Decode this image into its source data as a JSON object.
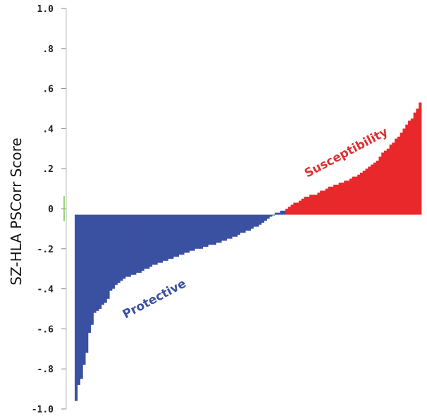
{
  "chart_data": {
    "type": "bar",
    "ylabel": "SZ-HLA PSCorr Score",
    "xlabel": "",
    "ylim": [
      -1.0,
      1.0
    ],
    "yticks": [
      {
        "value": 1.0,
        "label": "1.0"
      },
      {
        "value": 0.8,
        "label": ".8"
      },
      {
        "value": 0.6,
        "label": ".6"
      },
      {
        "value": 0.4,
        "label": ".4"
      },
      {
        "value": 0.2,
        "label": ".2"
      },
      {
        "value": 0.0,
        "label": "0"
      },
      {
        "value": -0.2,
        "label": "-.2"
      },
      {
        "value": -0.4,
        "label": "-.4"
      },
      {
        "value": -0.6,
        "label": "-.6"
      },
      {
        "value": -0.8,
        "label": "-.8"
      },
      {
        "value": -1.0,
        "label": "-1.0"
      }
    ],
    "grid": false,
    "annotations": [
      {
        "text": "Protective",
        "color": "#3a50a0"
      },
      {
        "text": "Susceptibility",
        "color": "#e03030"
      }
    ],
    "protective_color": "#3a50a0",
    "susceptibility_color": "#e8282a",
    "values": [
      -0.96,
      -0.88,
      -0.85,
      -0.78,
      -0.72,
      -0.62,
      -0.58,
      -0.52,
      -0.51,
      -0.5,
      -0.48,
      -0.47,
      -0.45,
      -0.41,
      -0.4,
      -0.38,
      -0.37,
      -0.36,
      -0.35,
      -0.34,
      -0.34,
      -0.33,
      -0.33,
      -0.32,
      -0.32,
      -0.31,
      -0.3,
      -0.3,
      -0.29,
      -0.28,
      -0.28,
      -0.27,
      -0.27,
      -0.26,
      -0.26,
      -0.25,
      -0.25,
      -0.24,
      -0.24,
      -0.23,
      -0.23,
      -0.22,
      -0.22,
      -0.21,
      -0.21,
      -0.2,
      -0.2,
      -0.2,
      -0.19,
      -0.19,
      -0.18,
      -0.18,
      -0.18,
      -0.17,
      -0.17,
      -0.16,
      -0.16,
      -0.15,
      -0.15,
      -0.14,
      -0.14,
      -0.13,
      -0.12,
      -0.12,
      -0.11,
      -0.11,
      -0.1,
      -0.09,
      -0.09,
      -0.08,
      -0.07,
      -0.06,
      -0.05,
      -0.04,
      -0.03,
      -0.02,
      -0.02,
      -0.01,
      -0.01,
      0.0,
      0.01,
      0.02,
      0.03,
      0.03,
      0.04,
      0.05,
      0.06,
      0.06,
      0.07,
      0.07,
      0.07,
      0.08,
      0.09,
      0.09,
      0.1,
      0.11,
      0.11,
      0.12,
      0.12,
      0.13,
      0.13,
      0.14,
      0.14,
      0.15,
      0.16,
      0.16,
      0.17,
      0.18,
      0.19,
      0.2,
      0.21,
      0.22,
      0.23,
      0.24,
      0.26,
      0.28,
      0.29,
      0.3,
      0.32,
      0.33,
      0.35,
      0.36,
      0.38,
      0.4,
      0.42,
      0.44,
      0.45,
      0.48,
      0.5,
      0.53
    ]
  }
}
